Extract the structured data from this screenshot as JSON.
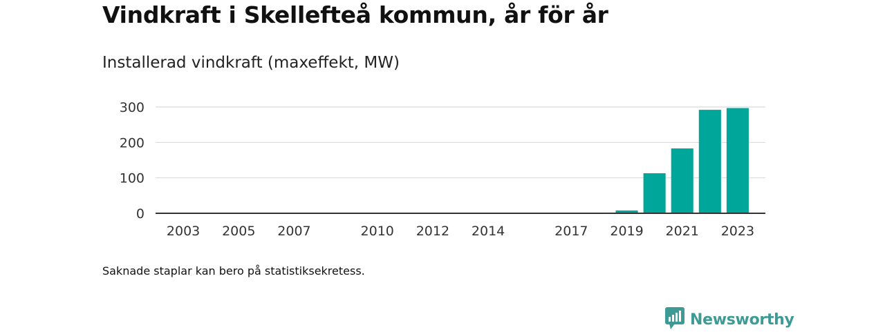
{
  "title": "Vindkraft i Skellefteå kommun, år för år",
  "subtitle": "Installerad vindkraft (maxeffekt, MW)",
  "footnote": "Saknade staplar kan bero på statistiksekretess.",
  "brand": {
    "name": "Newsworthy",
    "color": "#3d9a94",
    "icon": "chart-speech-bubble-icon"
  },
  "chart_data": {
    "type": "bar",
    "x": [
      2019,
      2020,
      2021,
      2022,
      2023
    ],
    "values": [
      8,
      113,
      183,
      292,
      297
    ],
    "x_ticks": [
      2003,
      2005,
      2007,
      2010,
      2012,
      2014,
      2017,
      2019,
      2021,
      2023
    ],
    "y_ticks": [
      0,
      100,
      200,
      300
    ],
    "xlim": [
      2002,
      2024
    ],
    "ylim": [
      0,
      300
    ],
    "bar_color": "#00a699",
    "grid": true,
    "xlabel": "",
    "ylabel": ""
  }
}
